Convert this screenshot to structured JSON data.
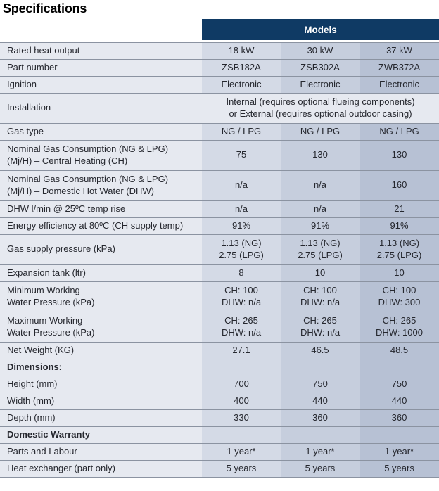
{
  "page_title": "Specifications",
  "colors": {
    "header_navy": "#0f3a64",
    "header_text": "#ffffff",
    "label_column_bg": "#e6e9f0",
    "model_col_1_bg": "#d4dae6",
    "model_col_2_bg": "#c6cedd",
    "model_col_3_bg": "#b7c1d4",
    "row_separator": "#8b93a1",
    "body_text": "#25272e"
  },
  "table": {
    "header": {
      "models_label": "Models"
    },
    "rows": [
      {
        "type": "data",
        "label": "Rated heat output",
        "values": [
          "18 kW",
          "30 kW",
          "37 kW"
        ]
      },
      {
        "type": "data",
        "label": "Part number",
        "values": [
          "ZSB182A",
          "ZSB302A",
          "ZWB372A"
        ]
      },
      {
        "type": "data",
        "label": "Ignition",
        "values": [
          "Electronic",
          "Electronic",
          "Electronic"
        ]
      },
      {
        "type": "span",
        "label": "Installation",
        "span_value": "Internal (requires optional flueing components)\nor External (requires optional outdoor casing)"
      },
      {
        "type": "data",
        "label": "Gas type",
        "values": [
          "NG / LPG",
          "NG / LPG",
          "NG / LPG"
        ]
      },
      {
        "type": "data",
        "label": "Nominal Gas Consumption (NG & LPG)\n(Mj/H) – Central Heating (CH)",
        "values": [
          "75",
          "130",
          "130"
        ]
      },
      {
        "type": "data",
        "label": "Nominal Gas Consumption (NG & LPG)\n(Mj/H) – Domestic Hot Water (DHW)",
        "values": [
          "n/a",
          "n/a",
          "160"
        ]
      },
      {
        "type": "data",
        "label": "DHW l/min @ 25ºC temp rise",
        "values": [
          "n/a",
          "n/a",
          "21"
        ]
      },
      {
        "type": "data",
        "label": "Energy efficiency at 80ºC (CH supply temp)",
        "values": [
          "91%",
          "91%",
          "91%"
        ]
      },
      {
        "type": "data",
        "label": "Gas supply pressure (kPa)",
        "values": [
          "1.13 (NG)\n2.75 (LPG)",
          "1.13 (NG)\n2.75 (LPG)",
          "1.13 (NG)\n2.75 (LPG)"
        ]
      },
      {
        "type": "data",
        "label": "Expansion tank (ltr)",
        "values": [
          "8",
          "10",
          "10"
        ]
      },
      {
        "type": "data",
        "label": "Minimum Working\nWater Pressure (kPa)",
        "values": [
          "CH: 100\nDHW: n/a",
          "CH: 100\nDHW: n/a",
          "CH: 100\nDHW: 300"
        ]
      },
      {
        "type": "data",
        "label": "Maximum Working\nWater Pressure (kPa)",
        "values": [
          "CH: 265\nDHW: n/a",
          "CH: 265\nDHW: n/a",
          "CH: 265\nDHW: 1000"
        ]
      },
      {
        "type": "data",
        "label": "Net Weight (KG)",
        "values": [
          "27.1",
          "46.5",
          "48.5"
        ]
      },
      {
        "type": "section",
        "label": "Dimensions:",
        "values": [
          "",
          "",
          ""
        ]
      },
      {
        "type": "data",
        "label": "Height (mm)",
        "values": [
          "700",
          "750",
          "750"
        ]
      },
      {
        "type": "data",
        "label": "Width (mm)",
        "values": [
          "400",
          "440",
          "440"
        ]
      },
      {
        "type": "data",
        "label": "Depth (mm)",
        "values": [
          "330",
          "360",
          "360"
        ]
      },
      {
        "type": "section",
        "label": "Domestic Warranty",
        "values": [
          "",
          "",
          ""
        ]
      },
      {
        "type": "data",
        "label": "Parts and Labour",
        "values": [
          "1 year*",
          "1 year*",
          "1 year*"
        ]
      },
      {
        "type": "data",
        "label": "Heat exchanger (part only)",
        "values": [
          "5 years",
          "5 years",
          "5 years"
        ]
      }
    ]
  }
}
